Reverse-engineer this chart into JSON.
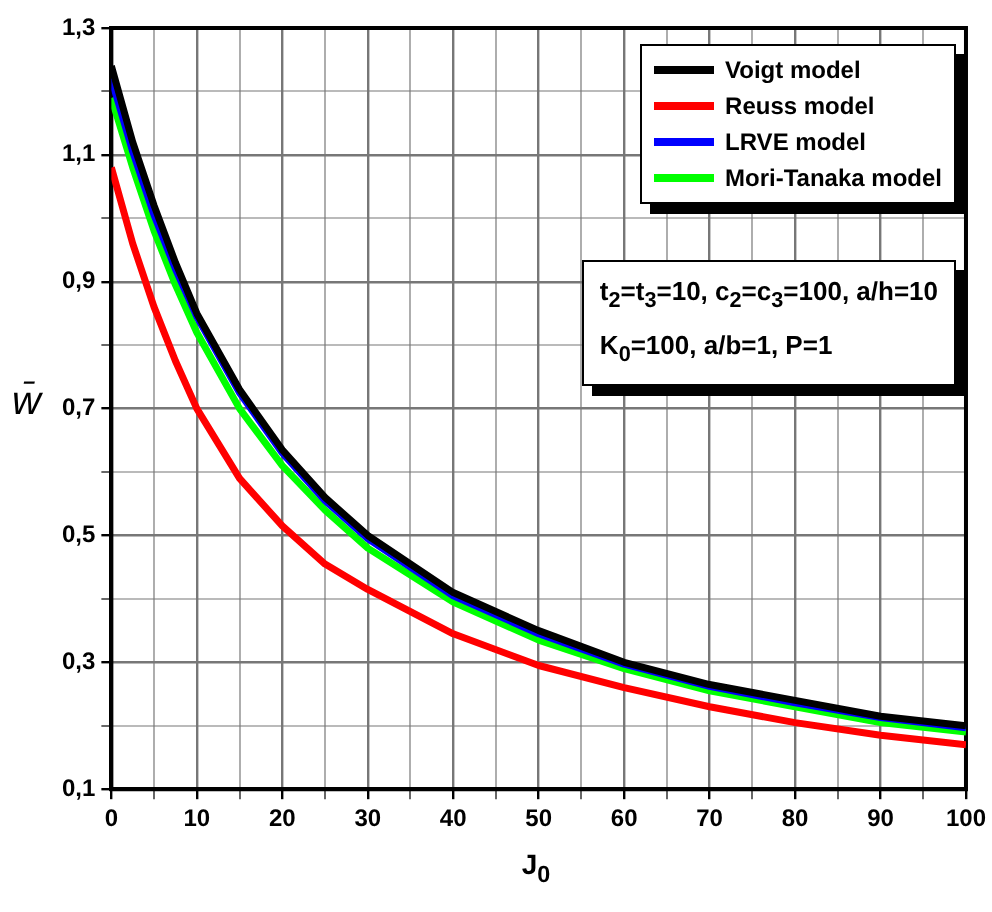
{
  "chart_data": {
    "type": "line",
    "xlabel": "J$_{0}$",
    "ylabel": "w̄",
    "x": [
      0,
      2.5,
      5,
      7.5,
      10,
      15,
      20,
      25,
      30,
      40,
      50,
      60,
      70,
      80,
      90,
      100
    ],
    "series": [
      {
        "name": "Voigt model",
        "color": "#000000",
        "values": [
          1.24,
          1.12,
          1.02,
          0.93,
          0.85,
          0.73,
          0.635,
          0.56,
          0.5,
          0.41,
          0.35,
          0.3,
          0.265,
          0.24,
          0.215,
          0.2
        ]
      },
      {
        "name": "Reuss model",
        "color": "#ff0000",
        "values": [
          1.08,
          0.96,
          0.86,
          0.775,
          0.7,
          0.59,
          0.515,
          0.455,
          0.415,
          0.345,
          0.295,
          0.26,
          0.23,
          0.205,
          0.185,
          0.17
        ]
      },
      {
        "name": "LRVE model",
        "color": "#0000ff",
        "values": [
          1.22,
          1.105,
          1.005,
          0.92,
          0.845,
          0.725,
          0.63,
          0.555,
          0.495,
          0.405,
          0.345,
          0.297,
          0.262,
          0.236,
          0.213,
          0.197
        ]
      },
      {
        "name": "Mori-Tanaka model",
        "color": "#00ff00",
        "values": [
          1.19,
          1.08,
          0.98,
          0.895,
          0.82,
          0.7,
          0.61,
          0.54,
          0.48,
          0.395,
          0.335,
          0.29,
          0.255,
          0.23,
          0.205,
          0.19
        ]
      }
    ],
    "xlim": [
      0,
      100
    ],
    "xticks": [
      0,
      {
        "value": 5,
        "label": null
      },
      10,
      {
        "value": 15,
        "label": null
      },
      20,
      {
        "value": 25,
        "label": null
      },
      30,
      {
        "value": 35,
        "label": null
      },
      40,
      {
        "value": 45,
        "label": null
      },
      50,
      {
        "value": 55,
        "label": null
      },
      60,
      {
        "value": 65,
        "label": null
      },
      70,
      {
        "value": 75,
        "label": null
      },
      80,
      {
        "value": 85,
        "label": null
      },
      90,
      {
        "value": 95,
        "label": null
      },
      100
    ],
    "ylim": [
      0.1,
      1.3
    ],
    "yticks": [
      {
        "value": 0.1,
        "label": "0,1"
      },
      {
        "value": 0.2,
        "label": null
      },
      {
        "value": 0.3,
        "label": "0,3"
      },
      {
        "value": 0.4,
        "label": null
      },
      {
        "value": 0.5,
        "label": "0,5"
      },
      {
        "value": 0.6,
        "label": null
      },
      {
        "value": 0.7,
        "label": "0,7"
      },
      {
        "value": 0.8,
        "label": null
      },
      {
        "value": 0.9,
        "label": "0,9"
      },
      {
        "value": 1.0,
        "label": null
      },
      {
        "value": 1.1,
        "label": "1,1"
      },
      {
        "value": 1.2,
        "label": null
      },
      {
        "value": 1.3,
        "label": "1,3"
      }
    ],
    "grid": true,
    "legend": "top right",
    "marker": "none",
    "line_style": "solid",
    "annotations": [
      "t$_{2}$=t$_{3}$=10, c$_{2}$=c$_{3}$=100, a/h=10",
      "K$_{0}$=100, a/b=1, P=1"
    ]
  }
}
